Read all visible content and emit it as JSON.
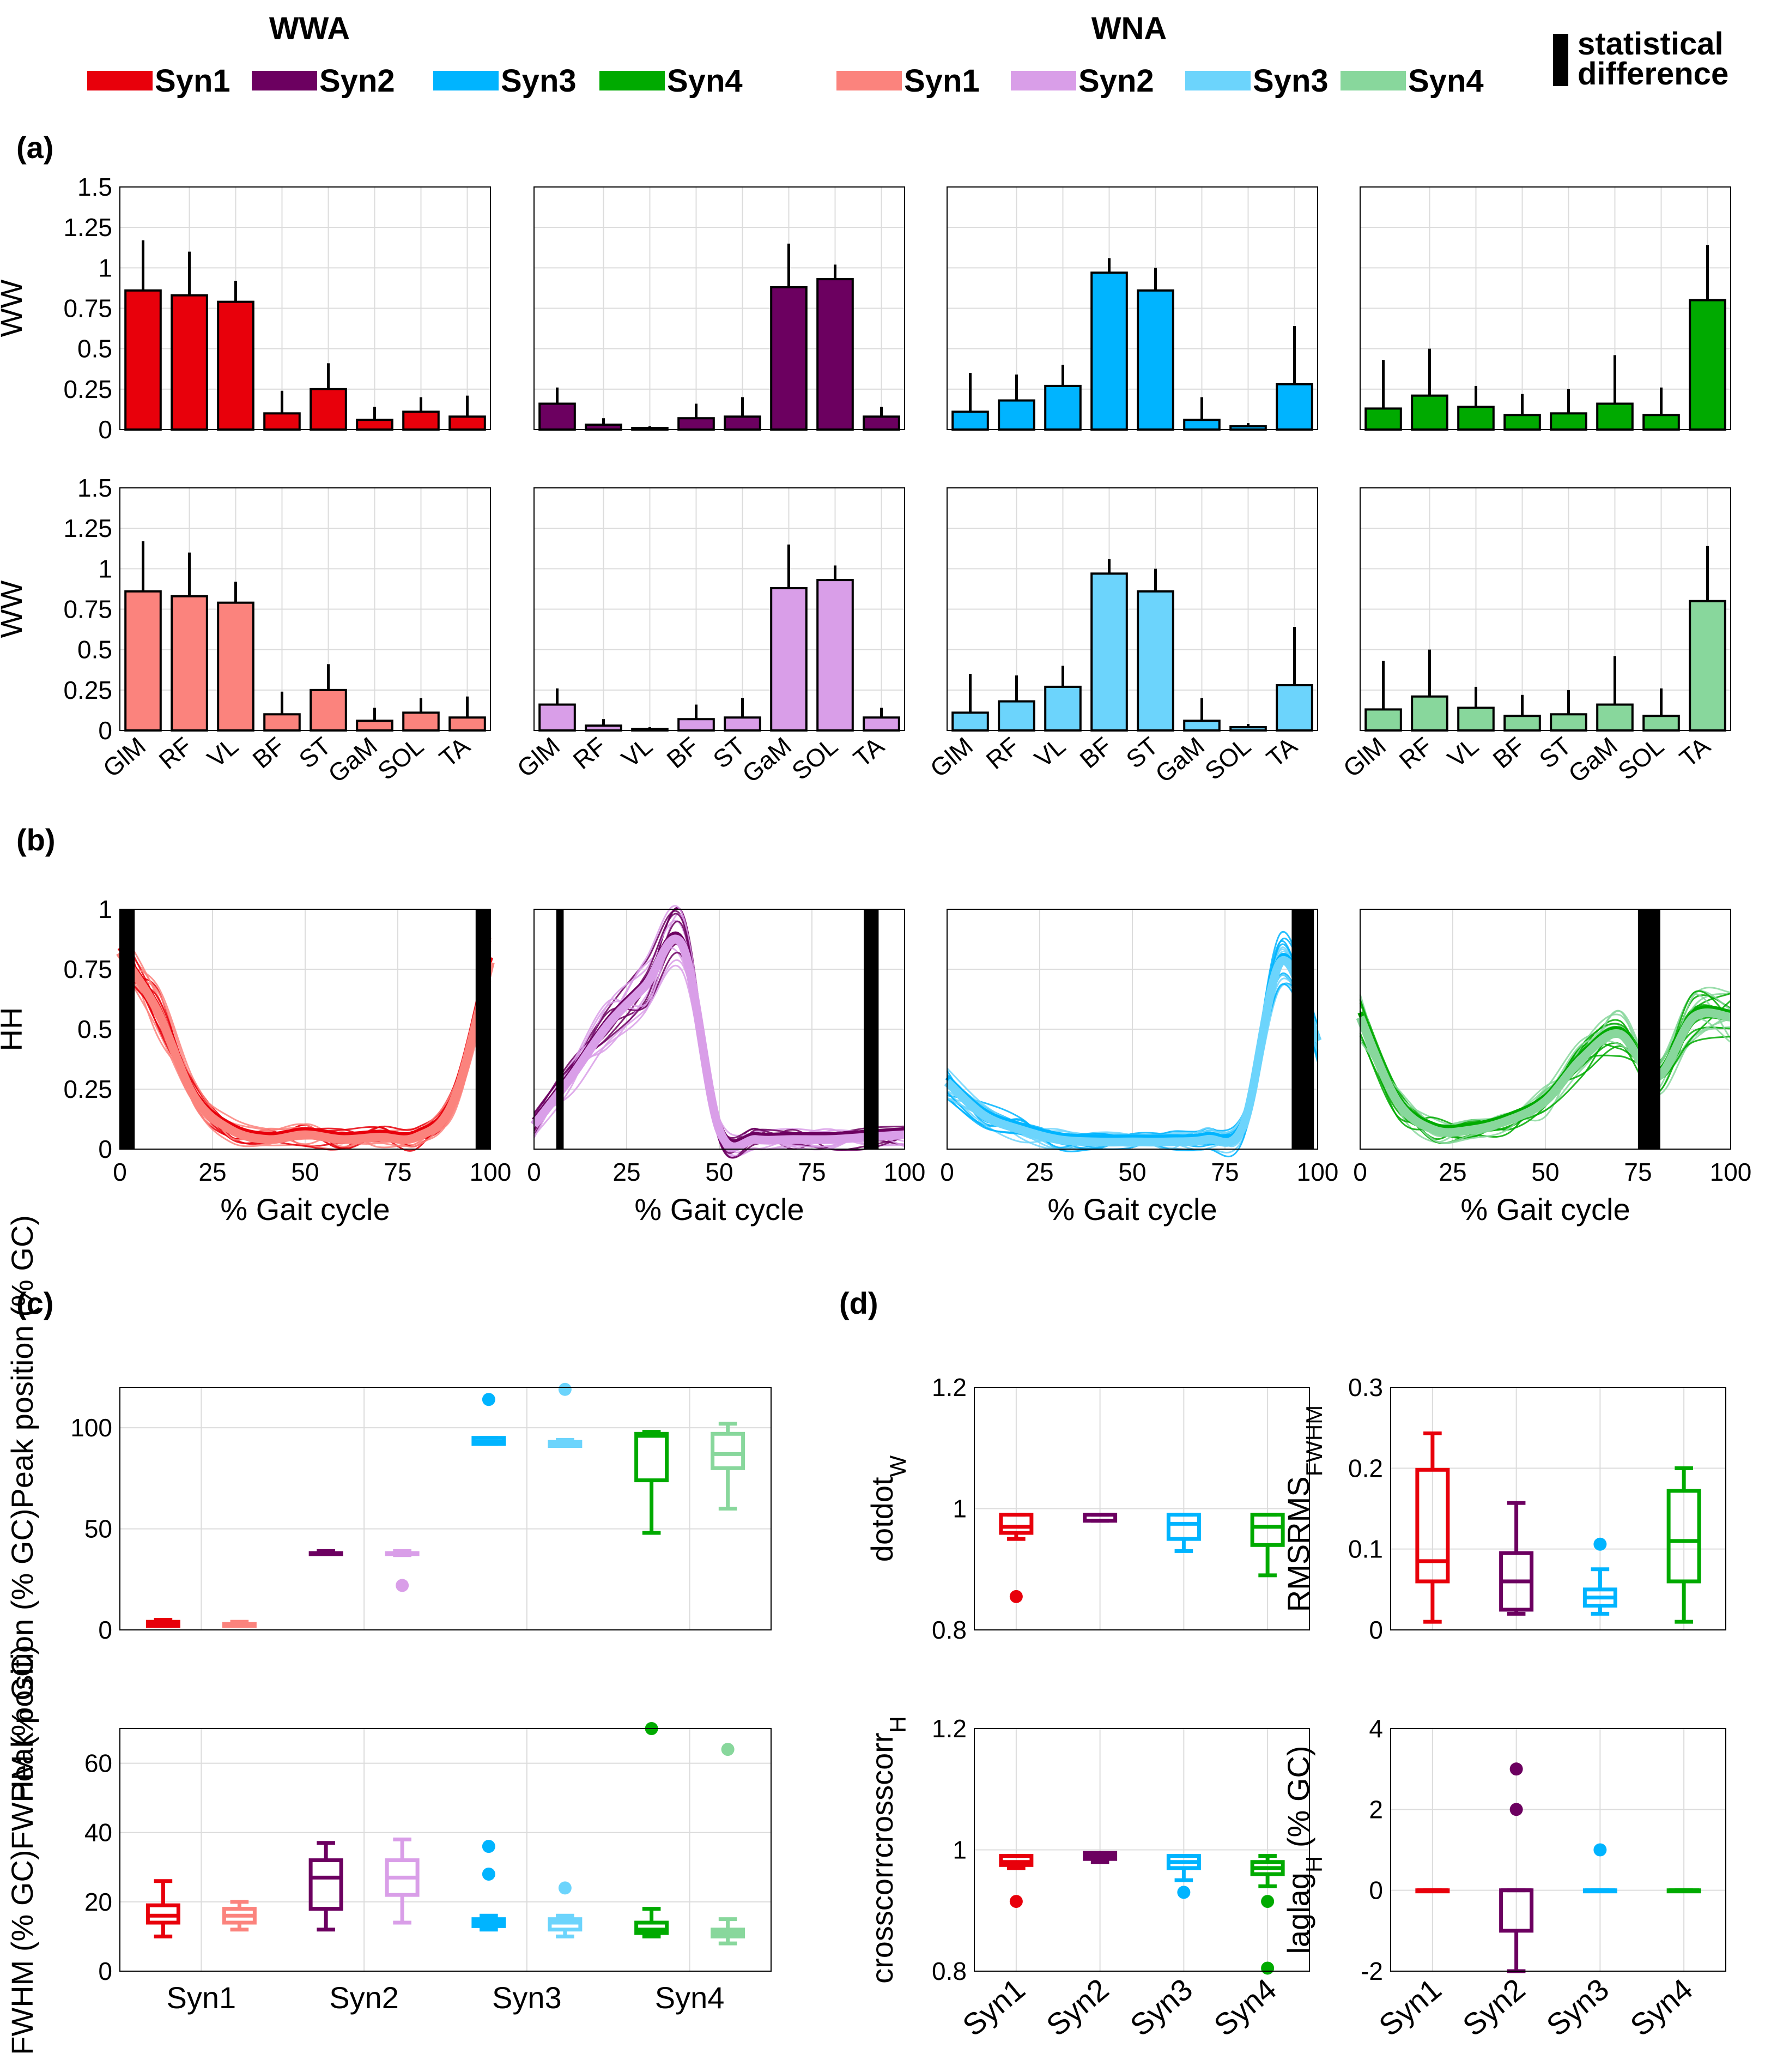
{
  "legend": {
    "group_wwa": "WWA",
    "group_wna": "WNA",
    "wwa_items": [
      "Syn1",
      "Syn2",
      "Syn3",
      "Syn4"
    ],
    "wna_items": [
      "Syn1",
      "Syn2",
      "Syn3",
      "Syn4"
    ],
    "stat_line1": "statistical",
    "stat_line2": "difference"
  },
  "colors": {
    "wwa": [
      "#e8000b",
      "#6c0060",
      "#00b4ff",
      "#00aa00"
    ],
    "wna": [
      "#fb837d",
      "#d99ee8",
      "#6cd4fc",
      "#88d79c"
    ],
    "stat": "#000000"
  },
  "panel_labels": {
    "a": "(a)",
    "b": "(b)",
    "c": "(c)",
    "d": "(d)"
  },
  "chart_data": [
    {
      "id": "a",
      "type": "bar",
      "ylabel": "W",
      "ylim": [
        0,
        1.5
      ],
      "yticks": [
        "0",
        "0.25",
        "0.5",
        "0.75",
        "1",
        "1.25",
        "1.5"
      ],
      "categories": [
        "GlM",
        "RF",
        "VL",
        "BF",
        "ST",
        "GaM",
        "SOL",
        "TA"
      ],
      "rows": [
        "WWA",
        "WNA"
      ],
      "series": [
        {
          "name": "Syn1",
          "values": [
            0.86,
            0.83,
            0.79,
            0.1,
            0.25,
            0.06,
            0.11,
            0.08
          ],
          "errors": [
            0.31,
            0.27,
            0.13,
            0.14,
            0.16,
            0.08,
            0.09,
            0.13
          ]
        },
        {
          "name": "Syn2",
          "values": [
            0.16,
            0.03,
            0.01,
            0.07,
            0.08,
            0.88,
            0.93,
            0.08
          ],
          "errors": [
            0.1,
            0.04,
            0.01,
            0.09,
            0.12,
            0.27,
            0.09,
            0.06
          ]
        },
        {
          "name": "Syn3",
          "values": [
            0.11,
            0.18,
            0.27,
            0.97,
            0.86,
            0.06,
            0.02,
            0.28
          ],
          "errors": [
            0.24,
            0.16,
            0.13,
            0.09,
            0.14,
            0.14,
            0.02,
            0.36
          ]
        },
        {
          "name": "Syn4",
          "values": [
            0.13,
            0.21,
            0.14,
            0.09,
            0.1,
            0.16,
            0.09,
            0.8
          ],
          "errors": [
            0.3,
            0.29,
            0.13,
            0.13,
            0.15,
            0.3,
            0.17,
            0.34
          ]
        }
      ]
    },
    {
      "id": "b",
      "type": "line",
      "ylabel": "H",
      "xlabel": "% Gait cycle",
      "xlim": [
        0,
        100
      ],
      "ylim": [
        0,
        1
      ],
      "xticks": [
        "0",
        "25",
        "50",
        "75",
        "100"
      ],
      "yticks": [
        "0",
        "0.25",
        "0.5",
        "0.75",
        "1"
      ],
      "x": [
        0,
        10,
        20,
        30,
        40,
        50,
        60,
        70,
        80,
        90,
        100
      ],
      "series": [
        {
          "name": "Syn1 mean",
          "values": [
            0.82,
            0.58,
            0.22,
            0.08,
            0.04,
            0.06,
            0.04,
            0.05,
            0.05,
            0.2,
            0.78
          ],
          "significant_ranges": [
            [
              0,
              4
            ],
            [
              96,
              100
            ]
          ]
        },
        {
          "name": "Syn2 mean",
          "values": [
            0.1,
            0.3,
            0.52,
            0.68,
            0.85,
            0.08,
            0.04,
            0.04,
            0.04,
            0.05,
            0.06
          ],
          "significant_ranges": [
            [
              6,
              8
            ],
            [
              89,
              93
            ]
          ]
        },
        {
          "name": "Syn3 mean",
          "values": [
            0.28,
            0.14,
            0.08,
            0.04,
            0.03,
            0.03,
            0.03,
            0.04,
            0.1,
            0.78,
            0.45
          ],
          "significant_ranges": [
            [
              93,
              99
            ]
          ]
        },
        {
          "name": "Syn4 mean",
          "values": [
            0.55,
            0.2,
            0.08,
            0.08,
            0.12,
            0.2,
            0.38,
            0.48,
            0.3,
            0.55,
            0.55
          ],
          "significant_ranges": [
            [
              75,
              81
            ]
          ]
        }
      ]
    },
    {
      "id": "c",
      "type": "box",
      "categories": [
        "Syn1",
        "Syn2",
        "Syn3",
        "Syn4"
      ],
      "plots": [
        {
          "ylabel": "Peak position (% GC)",
          "ylim": [
            0,
            120
          ],
          "yticks": [
            "0",
            "50",
            "100"
          ],
          "WWA": [
            [
              2,
              2,
              3,
              4,
              5
            ],
            [
              38,
              38,
              38,
              38,
              39
            ],
            [
              92,
              92,
              93,
              95,
              95
            ],
            [
              48,
              74,
              96,
              97,
              98
            ]
          ],
          "WNA": [
            [
              2,
              2,
              3,
              3,
              4
            ],
            [
              37,
              38,
              38,
              38,
              39
            ],
            [
              91,
              91,
              92,
              93,
              94
            ],
            [
              60,
              80,
              87,
              97,
              102
            ]
          ],
          "outliers_WWA": [
            [],
            [],
            [
              114
            ],
            []
          ],
          "outliers_WNA": [
            [],
            [
              22
            ],
            [
              119
            ],
            []
          ]
        },
        {
          "ylabel": "FWHM (% GC)",
          "ylim": [
            0,
            70
          ],
          "yticks": [
            "0",
            "20",
            "40",
            "60"
          ],
          "WWA": [
            [
              10,
              14,
              16,
              19,
              26
            ],
            [
              12,
              18,
              27,
              32,
              37
            ],
            [
              12,
              13,
              14,
              15,
              16
            ],
            [
              10,
              11,
              12,
              14,
              18
            ]
          ],
          "WNA": [
            [
              12,
              14,
              16,
              18,
              20
            ],
            [
              14,
              22,
              27,
              32,
              38
            ],
            [
              10,
              12,
              14,
              15,
              16
            ],
            [
              8,
              10,
              11,
              12,
              15
            ]
          ],
          "outliers_WWA": [
            [],
            [],
            [
              28,
              36
            ],
            [
              70
            ]
          ],
          "outliers_WNA": [
            [],
            [],
            [
              24
            ],
            [
              64
            ]
          ]
        }
      ]
    },
    {
      "id": "d",
      "type": "box",
      "categories": [
        "Syn1",
        "Syn2",
        "Syn3",
        "Syn4"
      ],
      "plots": [
        {
          "ylabel": "dot",
          "ylabel_sub": "W",
          "ylim": [
            0.8,
            1.2
          ],
          "yticks": [
            "0.8",
            "1",
            "1.2"
          ],
          "values": [
            [
              0.95,
              0.96,
              0.97,
              0.99,
              0.99
            ],
            [
              0.98,
              0.98,
              0.99,
              0.99,
              0.99
            ],
            [
              0.93,
              0.95,
              0.975,
              0.99,
              0.99
            ],
            [
              0.89,
              0.94,
              0.97,
              0.99,
              0.99
            ]
          ],
          "outliers": [
            [
              0.855
            ],
            [],
            [],
            []
          ]
        },
        {
          "ylabel": "RMS",
          "ylabel_sub": "FWHM",
          "ylim": [
            0,
            0.3
          ],
          "yticks": [
            "0",
            "0.1",
            "0.2",
            "0.3"
          ],
          "values": [
            [
              0.01,
              0.06,
              0.085,
              0.198,
              0.243
            ],
            [
              0.02,
              0.025,
              0.06,
              0.095,
              0.157
            ],
            [
              0.02,
              0.03,
              0.04,
              0.05,
              0.075
            ],
            [
              0.01,
              0.06,
              0.11,
              0.172,
              0.2
            ]
          ],
          "outliers": [
            [],
            [],
            [
              0.106
            ],
            []
          ]
        },
        {
          "ylabel": "crosscorr",
          "ylabel_sub": "H",
          "ylim": [
            0.8,
            1.2
          ],
          "yticks": [
            "0.8",
            "1",
            "1.2"
          ],
          "values": [
            [
              0.97,
              0.975,
              0.98,
              0.99,
              0.99
            ],
            [
              0.98,
              0.985,
              0.99,
              0.995,
              0.995
            ],
            [
              0.95,
              0.97,
              0.98,
              0.99,
              0.99
            ],
            [
              0.94,
              0.96,
              0.97,
              0.98,
              0.99
            ]
          ],
          "outliers": [
            [
              0.915
            ],
            [],
            [
              0.93
            ],
            [
              0.915,
              0.805
            ]
          ]
        },
        {
          "ylabel": "lag",
          "ylabel_sub": "H",
          "ylabel_tail": " (% GC)",
          "ylim": [
            -2,
            4
          ],
          "yticks": [
            "-2",
            "0",
            "2",
            "4"
          ],
          "values": [
            [
              0,
              0,
              0,
              0,
              0
            ],
            [
              -2,
              -1,
              0,
              0,
              0
            ],
            [
              0,
              0,
              0,
              0,
              0
            ],
            [
              0,
              0,
              0,
              0,
              0
            ]
          ],
          "outliers": [
            [],
            [
              2,
              3
            ],
            [
              1
            ],
            []
          ]
        }
      ]
    }
  ]
}
